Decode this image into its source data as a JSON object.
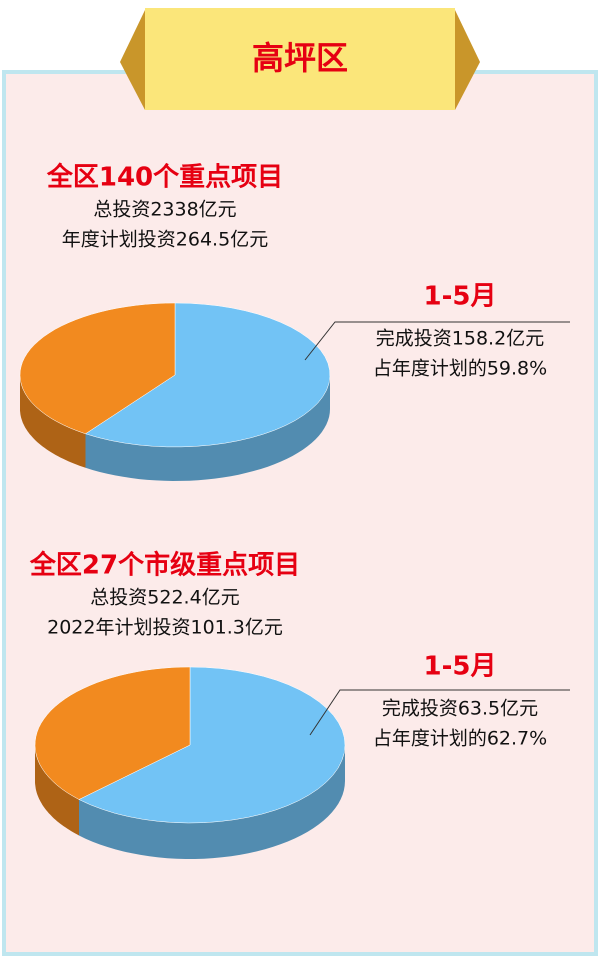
{
  "header": {
    "title": "高坪区"
  },
  "chart_data": [
    {
      "type": "pie",
      "title": "全区140个重点项目",
      "subtitle": [
        "总投资2338亿元",
        "年度计划投资264.5亿元"
      ],
      "annotation": {
        "title": "1-5月",
        "lines": [
          "完成投资158.2亿元",
          "占年度计划的59.8%"
        ]
      },
      "values": [
        59.8,
        40.2
      ],
      "colors": [
        "#72c3f5",
        "#f28a1f"
      ]
    },
    {
      "type": "pie",
      "title": "全区27个市级重点项目",
      "subtitle": [
        "总投资522.4亿元",
        "2022年计划投资101.3亿元"
      ],
      "annotation": {
        "title": "1-5月",
        "lines": [
          "完成投资63.5亿元",
          "占年度计划的62.7%"
        ]
      },
      "values": [
        62.7,
        37.3
      ],
      "colors": [
        "#72c3f5",
        "#f28a1f"
      ]
    }
  ]
}
